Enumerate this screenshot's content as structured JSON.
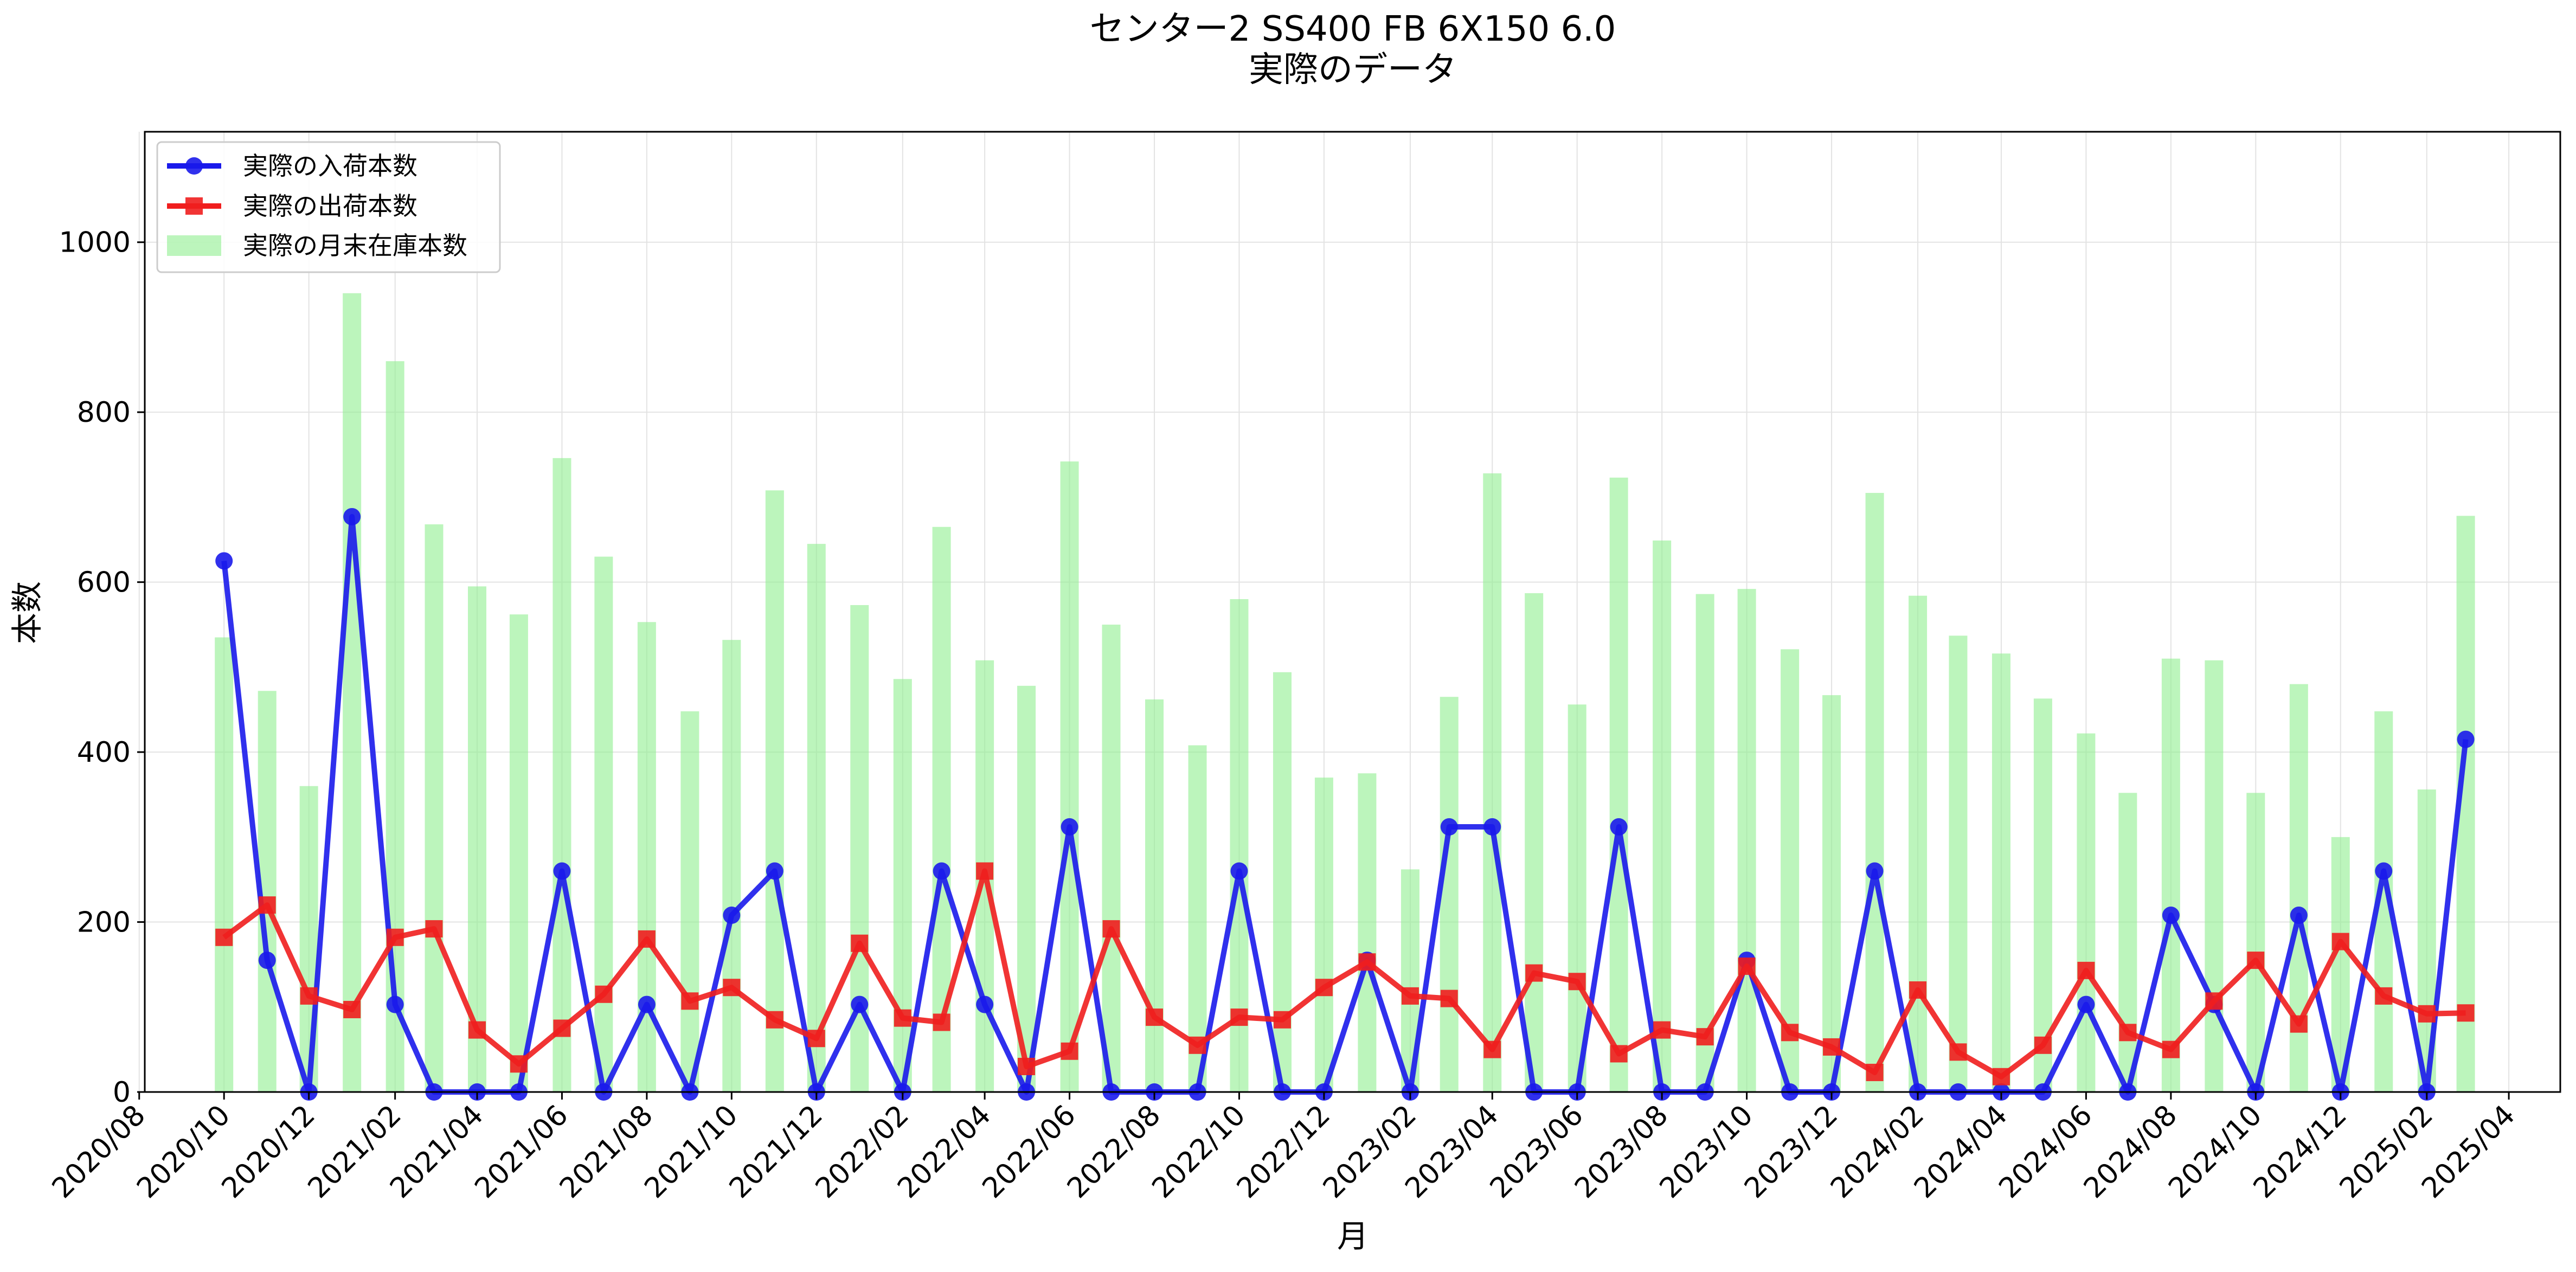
{
  "chart_data": {
    "type": "bar+line",
    "title": "センター2 SS400 FB 6X150 6.0",
    "subtitle": "実際のデータ",
    "xlabel": "月",
    "ylabel": "本数",
    "ylim": [
      0,
      1130
    ],
    "yticks": [
      0,
      200,
      400,
      600,
      800,
      1000
    ],
    "xlim": [
      "2020-08-05",
      "2025-05-08"
    ],
    "xticks": [
      "2020/08",
      "2020/10",
      "2020/12",
      "2021/02",
      "2021/04",
      "2021/06",
      "2021/08",
      "2021/10",
      "2021/12",
      "2022/02",
      "2022/04",
      "2022/06",
      "2022/08",
      "2022/10",
      "2022/12",
      "2023/02",
      "2023/04",
      "2023/06",
      "2023/08",
      "2023/10",
      "2023/12",
      "2024/02",
      "2024/04",
      "2024/06",
      "2024/08",
      "2024/10",
      "2024/12",
      "2025/02",
      "2025/04"
    ],
    "grid": true,
    "legend_position": "top-left",
    "months": [
      "2020-10",
      "2020-11",
      "2020-12",
      "2021-01",
      "2021-02",
      "2021-03",
      "2021-04",
      "2021-05",
      "2021-06",
      "2021-07",
      "2021-08",
      "2021-09",
      "2021-10",
      "2021-11",
      "2021-12",
      "2022-01",
      "2022-02",
      "2022-03",
      "2022-04",
      "2022-05",
      "2022-06",
      "2022-07",
      "2022-08",
      "2022-09",
      "2022-10",
      "2022-11",
      "2022-12",
      "2023-01",
      "2023-02",
      "2023-03",
      "2023-04",
      "2023-05",
      "2023-06",
      "2023-07",
      "2023-08",
      "2023-09",
      "2023-10",
      "2023-11",
      "2023-12",
      "2024-01",
      "2024-02",
      "2024-03",
      "2024-04",
      "2024-05",
      "2024-06",
      "2024-07",
      "2024-08",
      "2024-09",
      "2024-10",
      "2024-11",
      "2024-12",
      "2025-01",
      "2025-02",
      "2025-03"
    ],
    "series": [
      {
        "name": "実際の入荷本数",
        "kind": "line",
        "marker": "circle",
        "color": "#1a1aeb",
        "values": [
          625,
          155,
          0,
          677,
          103,
          0,
          0,
          0,
          260,
          0,
          103,
          0,
          208,
          260,
          0,
          103,
          0,
          260,
          103,
          0,
          312,
          0,
          0,
          0,
          260,
          0,
          0,
          155,
          0,
          312,
          312,
          0,
          0,
          312,
          0,
          0,
          155,
          0,
          0,
          260,
          0,
          0,
          0,
          0,
          103,
          0,
          208,
          103,
          0,
          208,
          0,
          260,
          0,
          415
        ]
      },
      {
        "name": "実際の出荷本数",
        "kind": "line",
        "marker": "square",
        "color": "#f01e1e",
        "values": [
          182,
          220,
          113,
          97,
          182,
          192,
          73,
          33,
          75,
          115,
          180,
          107,
          123,
          85,
          63,
          175,
          87,
          82,
          260,
          30,
          48,
          192,
          88,
          55,
          88,
          85,
          123,
          153,
          113,
          110,
          50,
          140,
          130,
          45,
          73,
          65,
          148,
          70,
          53,
          23,
          120,
          47,
          18,
          55,
          143,
          70,
          50,
          107,
          155,
          80,
          177,
          113,
          92,
          93
        ]
      },
      {
        "name": "実際の月末在庫本数",
        "kind": "bar",
        "color": "#90ee90",
        "values": [
          535,
          472,
          360,
          940,
          860,
          668,
          595,
          562,
          746,
          630,
          553,
          448,
          532,
          708,
          645,
          573,
          486,
          665,
          508,
          478,
          742,
          550,
          462,
          408,
          580,
          494,
          370,
          375,
          262,
          465,
          728,
          587,
          456,
          723,
          649,
          586,
          592,
          521,
          467,
          705,
          584,
          537,
          516,
          463,
          422,
          352,
          510,
          508,
          352,
          480,
          300,
          448,
          356,
          678
        ]
      }
    ]
  }
}
